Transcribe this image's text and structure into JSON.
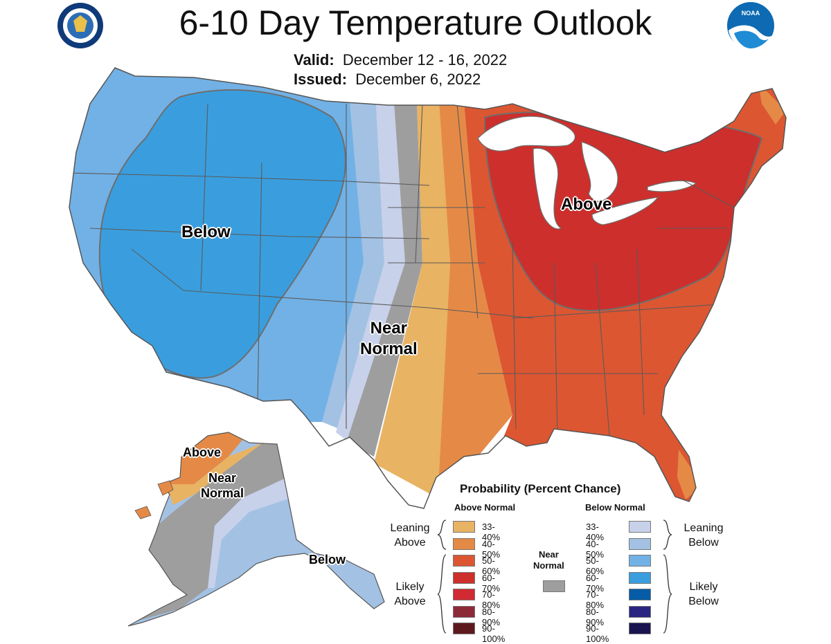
{
  "title": "6-10 Day Temperature Outlook",
  "valid_label": "Valid:",
  "valid_dates": "December 12 - 16, 2022",
  "issued_label": "Issued:",
  "issued_date": "December 6, 2022",
  "map_labels": {
    "conus_below": "Below",
    "conus_above": "Above",
    "conus_near_1": "Near",
    "conus_near_2": "Normal",
    "ak_above": "Above",
    "ak_near_1": "Near",
    "ak_near_2": "Normal",
    "ak_below": "Below"
  },
  "legend": {
    "title": "Probability (Percent Chance)",
    "above_header": "Above Normal",
    "below_header": "Below Normal",
    "near_normal_1": "Near",
    "near_normal_2": "Normal",
    "near_normal_color": "#9e9e9e",
    "leaning_above_1": "Leaning",
    "leaning_above_2": "Above",
    "likely_above_1": "Likely",
    "likely_above_2": "Above",
    "leaning_below_1": "Leaning",
    "leaning_below_2": "Below",
    "likely_below_1": "Likely",
    "likely_below_2": "Below",
    "above_categories": [
      {
        "range": "33-40%",
        "color": "#e8b363"
      },
      {
        "range": "40-50%",
        "color": "#e58a46"
      },
      {
        "range": "50-60%",
        "color": "#dc5632"
      },
      {
        "range": "60-70%",
        "color": "#cd2f2c"
      },
      {
        "range": "70-80%",
        "color": "#d12a32"
      },
      {
        "range": "80-90%",
        "color": "#8d2a38"
      },
      {
        "range": "90-100%",
        "color": "#5c1a1f"
      }
    ],
    "below_categories": [
      {
        "range": "33-40%",
        "color": "#c7d1ea"
      },
      {
        "range": "40-50%",
        "color": "#a3c1e3"
      },
      {
        "range": "50-60%",
        "color": "#72b1e5"
      },
      {
        "range": "60-70%",
        "color": "#3a9ede"
      },
      {
        "range": "70-80%",
        "color": "#065ca7"
      },
      {
        "range": "80-90%",
        "color": "#2a2580"
      },
      {
        "range": "90-100%",
        "color": "#1a154f"
      }
    ]
  },
  "map_colors": {
    "lake": "#ffffff",
    "state_line": "#5a5a5a"
  }
}
